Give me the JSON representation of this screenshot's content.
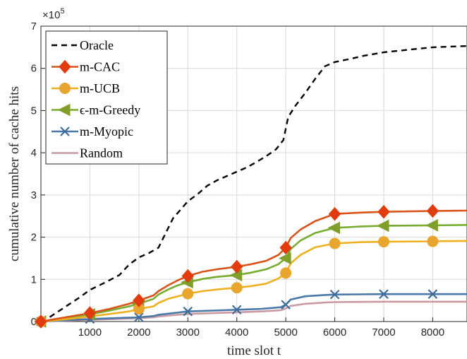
{
  "chart_data": {
    "type": "line",
    "xlabel": "time slot t",
    "ylabel": "cumulative number of cache hits",
    "y_multiplier_label": "×10",
    "y_multiplier_exponent": "5",
    "xlim": [
      0,
      8700
    ],
    "ylim": [
      0,
      7
    ],
    "xticks": [
      1000,
      2000,
      3000,
      4000,
      5000,
      6000,
      7000,
      8000
    ],
    "yticks": [
      0,
      1,
      2,
      3,
      4,
      5,
      6,
      7
    ],
    "grid": true,
    "legend_position": "top-left",
    "series": [
      {
        "name": "Oracle",
        "color": "#000000",
        "dash": true,
        "marker": "none",
        "x": [
          0,
          200,
          500,
          800,
          1000,
          1300,
          1600,
          1800,
          2000,
          2200,
          2400,
          2550,
          2700,
          2850,
          3000,
          3200,
          3400,
          3600,
          3800,
          4000,
          4200,
          4400,
          4600,
          4800,
          4950,
          5050,
          5200,
          5400,
          5600,
          5800,
          6000,
          6300,
          6600,
          7000,
          7500,
          8000,
          8700
        ],
        "y": [
          0,
          0.12,
          0.35,
          0.58,
          0.75,
          0.92,
          1.1,
          1.35,
          1.52,
          1.62,
          1.75,
          2.1,
          2.45,
          2.65,
          2.85,
          3.02,
          3.22,
          3.35,
          3.45,
          3.55,
          3.65,
          3.78,
          3.92,
          4.08,
          4.3,
          4.85,
          5.12,
          5.42,
          5.75,
          6.05,
          6.15,
          6.22,
          6.3,
          6.38,
          6.44,
          6.5,
          6.53
        ]
      },
      {
        "name": "m-CAC",
        "color": "#D95319",
        "dash": false,
        "marker": "diamond",
        "marker_color": "#E23B0E",
        "x": [
          0,
          300,
          700,
          1000,
          1400,
          1800,
          2000,
          2300,
          2400,
          2600,
          2800,
          3000,
          3300,
          3600,
          4000,
          4300,
          4600,
          4850,
          5000,
          5100,
          5300,
          5600,
          6000,
          6500,
          7000,
          8000,
          8700
        ],
        "y": [
          0,
          0.06,
          0.14,
          0.2,
          0.3,
          0.42,
          0.5,
          0.62,
          0.72,
          0.86,
          0.98,
          1.08,
          1.18,
          1.24,
          1.3,
          1.36,
          1.44,
          1.58,
          1.75,
          1.98,
          2.18,
          2.38,
          2.55,
          2.58,
          2.6,
          2.62,
          2.63
        ],
        "markers_x": [
          0,
          1000,
          2000,
          3000,
          4000,
          5000,
          6000,
          7000,
          8000
        ],
        "markers_y": [
          0,
          0.2,
          0.5,
          1.08,
          1.3,
          1.75,
          2.55,
          2.6,
          2.62
        ]
      },
      {
        "name": "m-UCB",
        "color": "#EDB120",
        "dash": false,
        "marker": "circle",
        "marker_color": "#E9A62E",
        "x": [
          0,
          300,
          700,
          1000,
          1400,
          1800,
          2000,
          2300,
          2400,
          2600,
          2800,
          3000,
          3300,
          3600,
          4000,
          4300,
          4600,
          4850,
          5000,
          5100,
          5300,
          5600,
          6000,
          6500,
          7000,
          8000,
          8700
        ],
        "y": [
          0,
          0.03,
          0.08,
          0.12,
          0.18,
          0.24,
          0.3,
          0.36,
          0.44,
          0.54,
          0.6,
          0.66,
          0.72,
          0.76,
          0.8,
          0.84,
          0.9,
          1.02,
          1.15,
          1.38,
          1.58,
          1.76,
          1.85,
          1.88,
          1.89,
          1.9,
          1.91
        ],
        "markers_x": [
          0,
          2000,
          3000,
          4000,
          5000,
          6000,
          7000,
          8000
        ],
        "markers_y": [
          0,
          0.3,
          0.66,
          0.8,
          1.15,
          1.85,
          1.89,
          1.9
        ]
      },
      {
        "name": "ϵ-m-Greedy",
        "color": "#77AC30",
        "dash": false,
        "marker": "triangle-left",
        "marker_color": "#7F9F29",
        "x": [
          0,
          300,
          700,
          1000,
          1400,
          1800,
          2000,
          2300,
          2400,
          2600,
          2800,
          3000,
          3300,
          3600,
          4000,
          4300,
          4600,
          4850,
          5000,
          5100,
          5300,
          5600,
          6000,
          6500,
          7000,
          8000,
          8700
        ],
        "y": [
          0,
          0.05,
          0.12,
          0.17,
          0.26,
          0.36,
          0.42,
          0.54,
          0.64,
          0.76,
          0.86,
          0.93,
          1.01,
          1.06,
          1.1,
          1.16,
          1.24,
          1.36,
          1.5,
          1.72,
          1.92,
          2.1,
          2.22,
          2.25,
          2.27,
          2.28,
          2.29
        ],
        "markers_x": [
          0,
          1000,
          2000,
          3000,
          4000,
          5000,
          6000,
          7000,
          8000
        ],
        "markers_y": [
          0,
          0.17,
          0.42,
          0.93,
          1.1,
          1.5,
          2.22,
          2.27,
          2.28
        ]
      },
      {
        "name": "m-Myopic",
        "color": "#4A79A8",
        "dash": false,
        "marker": "x",
        "marker_color": "#3E6D9C",
        "x": [
          0,
          500,
          1000,
          1500,
          2000,
          2300,
          2400,
          2700,
          3000,
          3500,
          4000,
          4500,
          4900,
          5000,
          5100,
          5400,
          5800,
          6000,
          7000,
          8000,
          8700
        ],
        "y": [
          0,
          0.03,
          0.06,
          0.08,
          0.1,
          0.13,
          0.16,
          0.2,
          0.24,
          0.26,
          0.28,
          0.3,
          0.34,
          0.4,
          0.52,
          0.6,
          0.63,
          0.64,
          0.65,
          0.65,
          0.65
        ],
        "markers_x": [
          0,
          1000,
          2000,
          3000,
          4000,
          5000,
          6000,
          7000,
          8000
        ],
        "markers_y": [
          0,
          0.06,
          0.1,
          0.24,
          0.28,
          0.4,
          0.64,
          0.65,
          0.65
        ]
      },
      {
        "name": "Random",
        "color": "#C99AA2",
        "dash": false,
        "marker": "none",
        "x": [
          0,
          500,
          1000,
          1500,
          2000,
          2300,
          2400,
          2700,
          3000,
          3500,
          4000,
          4500,
          4900,
          5000,
          5100,
          5400,
          5800,
          6000,
          7000,
          8000,
          8700
        ],
        "y": [
          0,
          0.02,
          0.04,
          0.06,
          0.08,
          0.1,
          0.12,
          0.15,
          0.18,
          0.2,
          0.22,
          0.24,
          0.27,
          0.31,
          0.37,
          0.42,
          0.45,
          0.46,
          0.47,
          0.47,
          0.47
        ]
      }
    ]
  }
}
